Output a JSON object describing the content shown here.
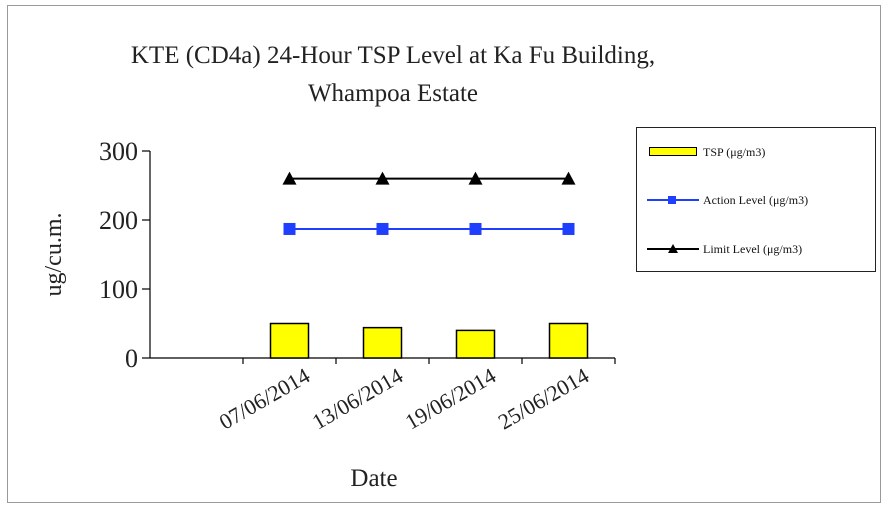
{
  "chart_data": {
    "type": "bar+line",
    "title_lines": [
      "KTE  (CD4a) 24-Hour TSP Level at Ka Fu Building,",
      "Whampoa Estate"
    ],
    "xlabel": "Date",
    "ylabel": "ug/cu.m.",
    "ylim": [
      0,
      300
    ],
    "yticks": [
      "0",
      "100",
      "200",
      "300"
    ],
    "categories": [
      "",
      "07/06/2014",
      "13/06/2014",
      "19/06/2014",
      "25/06/2014"
    ],
    "series": [
      {
        "name": "TSP (μg/m3)",
        "kind": "bar",
        "color": "#ffff00",
        "values": [
          null,
          50,
          44,
          40,
          50
        ]
      },
      {
        "name": "Action Level (μg/m3)",
        "kind": "line",
        "marker": "square",
        "color": "#1f3fff",
        "values": [
          null,
          187,
          187,
          187,
          187
        ]
      },
      {
        "name": "Limit Level (μg/m3)",
        "kind": "line",
        "marker": "triangle",
        "color": "#000000",
        "values": [
          null,
          260,
          260,
          260,
          260
        ]
      }
    ],
    "legend_position": "right",
    "grid": false
  }
}
